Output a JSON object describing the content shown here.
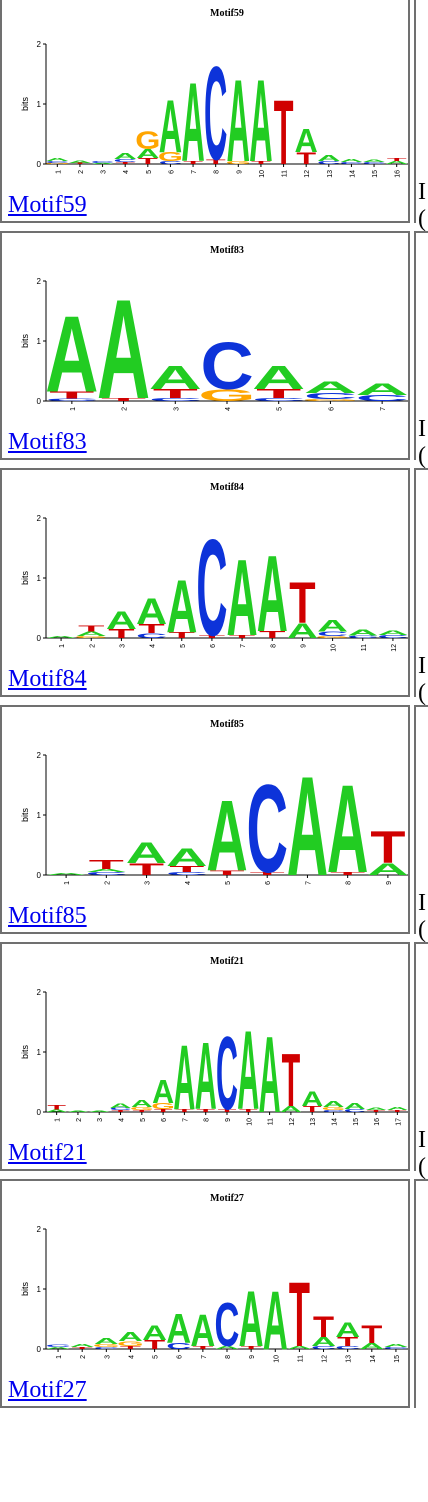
{
  "motifs": [
    {
      "link": "Motif59",
      "title": "Motif59",
      "ylabel": "bits",
      "yticks": [
        "2",
        "1",
        "0"
      ],
      "positions": [
        "1",
        "2",
        "3",
        "4",
        "5",
        "6",
        "7",
        "8",
        "9",
        "10",
        "11",
        "12",
        "13",
        "14",
        "15",
        "16"
      ],
      "cut_line1": "I",
      "cut_line2": "(",
      "stack": [
        [
          [
            "A",
            0.05
          ],
          [
            "C",
            0.03
          ],
          [
            "G",
            0.02
          ]
        ],
        [
          [
            "A",
            0.04
          ],
          [
            "T",
            0.02
          ]
        ],
        [
          [
            "C",
            0.03
          ],
          [
            "A",
            0.02
          ]
        ],
        [
          [
            "A",
            0.1
          ],
          [
            "C",
            0.05
          ],
          [
            "T",
            0.03
          ]
        ],
        [
          [
            "G",
            0.3
          ],
          [
            "A",
            0.15
          ],
          [
            "T",
            0.1
          ]
        ],
        [
          [
            "A",
            0.9
          ],
          [
            "G",
            0.15
          ],
          [
            "C",
            0.05
          ]
        ],
        [
          [
            "A",
            1.35
          ],
          [
            "T",
            0.05
          ]
        ],
        [
          [
            "C",
            1.6
          ],
          [
            "T",
            0.08
          ]
        ],
        [
          [
            "A",
            1.4
          ],
          [
            "G",
            0.05
          ]
        ],
        [
          [
            "A",
            1.4
          ],
          [
            "T",
            0.05
          ]
        ],
        [
          [
            "T",
            1.1
          ]
        ],
        [
          [
            "A",
            0.4
          ],
          [
            "T",
            0.2
          ]
        ],
        [
          [
            "A",
            0.1
          ],
          [
            "C",
            0.05
          ]
        ],
        [
          [
            "A",
            0.05
          ],
          [
            "C",
            0.03
          ]
        ],
        [
          [
            "A",
            0.04
          ],
          [
            "C",
            0.03
          ]
        ],
        [
          [
            "A",
            0.05
          ],
          [
            "T",
            0.05
          ]
        ]
      ]
    },
    {
      "link": "Motif83",
      "title": "Motif83",
      "ylabel": "bits",
      "yticks": [
        "2",
        "1",
        "0"
      ],
      "positions": [
        "1",
        "2",
        "3",
        "4",
        "5",
        "6",
        "7"
      ],
      "cut_line1": "I",
      "cut_line2": "(",
      "stack": [
        [
          [
            "A",
            1.3
          ],
          [
            "T",
            0.12
          ],
          [
            "C",
            0.04
          ]
        ],
        [
          [
            "A",
            1.7
          ],
          [
            "T",
            0.05
          ]
        ],
        [
          [
            "A",
            0.4
          ],
          [
            "T",
            0.15
          ],
          [
            "C",
            0.05
          ]
        ],
        [
          [
            "C",
            0.8
          ],
          [
            "G",
            0.2
          ]
        ],
        [
          [
            "A",
            0.4
          ],
          [
            "T",
            0.15
          ],
          [
            "C",
            0.05
          ]
        ],
        [
          [
            "A",
            0.2
          ],
          [
            "C",
            0.1
          ],
          [
            "G",
            0.03
          ]
        ],
        [
          [
            "A",
            0.2
          ],
          [
            "C",
            0.1
          ]
        ]
      ]
    },
    {
      "link": "Motif84",
      "title": "Motif84",
      "ylabel": "bits",
      "yticks": [
        "2",
        "1",
        "0"
      ],
      "positions": [
        "1",
        "2",
        "3",
        "4",
        "5",
        "6",
        "7",
        "8",
        "9",
        "10",
        "11",
        "12"
      ],
      "cut_line1": "I",
      "cut_line2": "(",
      "stack": [
        [
          [
            "A",
            0.03
          ]
        ],
        [
          [
            "T",
            0.1
          ],
          [
            "A",
            0.08
          ],
          [
            "G",
            0.03
          ]
        ],
        [
          [
            "A",
            0.3
          ],
          [
            "T",
            0.15
          ]
        ],
        [
          [
            "A",
            0.45
          ],
          [
            "T",
            0.15
          ],
          [
            "C",
            0.08
          ]
        ],
        [
          [
            "A",
            0.9
          ],
          [
            "T",
            0.1
          ]
        ],
        [
          [
            "C",
            1.65
          ],
          [
            "T",
            0.05
          ]
        ],
        [
          [
            "A",
            1.3
          ],
          [
            "T",
            0.05
          ]
        ],
        [
          [
            "A",
            1.3
          ],
          [
            "T",
            0.12
          ]
        ],
        [
          [
            "T",
            0.7
          ],
          [
            "A",
            0.25
          ]
        ],
        [
          [
            "A",
            0.2
          ],
          [
            "C",
            0.08
          ],
          [
            "G",
            0.03
          ]
        ],
        [
          [
            "A",
            0.1
          ],
          [
            "C",
            0.04
          ]
        ],
        [
          [
            "A",
            0.08
          ],
          [
            "C",
            0.05
          ]
        ]
      ]
    },
    {
      "link": "Motif85",
      "title": "Motif85",
      "ylabel": "bits",
      "yticks": [
        "2",
        "1",
        "0"
      ],
      "positions": [
        "1",
        "2",
        "3",
        "4",
        "5",
        "6",
        "7",
        "8",
        "9"
      ],
      "cut_line1": "I",
      "cut_line2": "(",
      "stack": [
        [
          [
            "A",
            0.03
          ]
        ],
        [
          [
            "T",
            0.15
          ],
          [
            "C",
            0.05
          ],
          [
            "A",
            0.05
          ]
        ],
        [
          [
            "A",
            0.35
          ],
          [
            "T",
            0.2
          ]
        ],
        [
          [
            "A",
            0.3
          ],
          [
            "T",
            0.1
          ],
          [
            "C",
            0.05
          ]
        ],
        [
          [
            "A",
            1.2
          ],
          [
            "T",
            0.08
          ]
        ],
        [
          [
            "C",
            1.5
          ],
          [
            "T",
            0.05
          ]
        ],
        [
          [
            "A",
            1.7
          ]
        ],
        [
          [
            "A",
            1.5
          ],
          [
            "T",
            0.05
          ]
        ],
        [
          [
            "T",
            0.55
          ],
          [
            "A",
            0.2
          ]
        ]
      ]
    },
    {
      "link": "Motif21",
      "title": "Motif21",
      "ylabel": "bits",
      "yticks": [
        "2",
        "1",
        "0"
      ],
      "positions": [
        "1",
        "2",
        "3",
        "4",
        "5",
        "6",
        "7",
        "8",
        "9",
        "10",
        "11",
        "12",
        "13",
        "14",
        "15",
        "16",
        "17"
      ],
      "cut_line1": "I",
      "cut_line2": "(",
      "stack": [
        [
          [
            "T",
            0.08
          ],
          [
            "A",
            0.04
          ]
        ],
        [
          [
            "A",
            0.02
          ]
        ],
        [
          [
            "A",
            0.02
          ]
        ],
        [
          [
            "A",
            0.08
          ],
          [
            "C",
            0.04
          ],
          [
            "T",
            0.03
          ]
        ],
        [
          [
            "A",
            0.12
          ],
          [
            "G",
            0.05
          ],
          [
            "T",
            0.03
          ]
        ],
        [
          [
            "A",
            0.4
          ],
          [
            "G",
            0.1
          ],
          [
            "T",
            0.05
          ]
        ],
        [
          [
            "A",
            1.1
          ],
          [
            "T",
            0.05
          ]
        ],
        [
          [
            "A",
            1.15
          ],
          [
            "T",
            0.05
          ]
        ],
        [
          [
            "C",
            1.25
          ],
          [
            "T",
            0.05
          ]
        ],
        [
          [
            "A",
            1.35
          ],
          [
            "T",
            0.05
          ]
        ],
        [
          [
            "A",
            1.3
          ]
        ],
        [
          [
            "T",
            0.9
          ],
          [
            "A",
            0.1
          ]
        ],
        [
          [
            "A",
            0.25
          ],
          [
            "T",
            0.1
          ]
        ],
        [
          [
            "A",
            0.1
          ],
          [
            "G",
            0.05
          ],
          [
            "C",
            0.03
          ]
        ],
        [
          [
            "A",
            0.1
          ],
          [
            "C",
            0.05
          ]
        ],
        [
          [
            "A",
            0.04
          ],
          [
            "T",
            0.03
          ]
        ],
        [
          [
            "A",
            0.05
          ],
          [
            "T",
            0.03
          ]
        ]
      ]
    },
    {
      "link": "Motif27",
      "title": "Motif27",
      "ylabel": "bits",
      "yticks": [
        "2",
        "1",
        "0"
      ],
      "positions": [
        "1",
        "2",
        "3",
        "4",
        "5",
        "6",
        "7",
        "8",
        "9",
        "10",
        "11",
        "12",
        "13",
        "14",
        "15"
      ],
      "cut_line1": "",
      "cut_line2": "",
      "stack": [
        [
          [
            "C",
            0.04
          ],
          [
            "A",
            0.03
          ]
        ],
        [
          [
            "A",
            0.05
          ],
          [
            "T",
            0.03
          ]
        ],
        [
          [
            "A",
            0.1
          ],
          [
            "G",
            0.05
          ],
          [
            "C",
            0.03
          ]
        ],
        [
          [
            "A",
            0.15
          ],
          [
            "G",
            0.08
          ],
          [
            "T",
            0.05
          ]
        ],
        [
          [
            "A",
            0.25
          ],
          [
            "T",
            0.15
          ]
        ],
        [
          [
            "A",
            0.5
          ],
          [
            "C",
            0.1
          ]
        ],
        [
          [
            "A",
            0.55
          ],
          [
            "T",
            0.05
          ]
        ],
        [
          [
            "C",
            0.75
          ],
          [
            "A",
            0.05
          ]
        ],
        [
          [
            "A",
            0.95
          ],
          [
            "T",
            0.05
          ]
        ],
        [
          [
            "A",
            1.0
          ]
        ],
        [
          [
            "T",
            1.1
          ],
          [
            "A",
            0.05
          ]
        ],
        [
          [
            "T",
            0.35
          ],
          [
            "A",
            0.15
          ],
          [
            "C",
            0.05
          ]
        ],
        [
          [
            "A",
            0.25
          ],
          [
            "T",
            0.15
          ],
          [
            "C",
            0.05
          ]
        ],
        [
          [
            "T",
            0.3
          ],
          [
            "A",
            0.1
          ]
        ],
        [
          [
            "A",
            0.05
          ],
          [
            "C",
            0.03
          ]
        ]
      ]
    }
  ],
  "colors": {
    "A": "#22cc22",
    "C": "#0d33d9",
    "G": "#ffa500",
    "T": "#d00000"
  }
}
